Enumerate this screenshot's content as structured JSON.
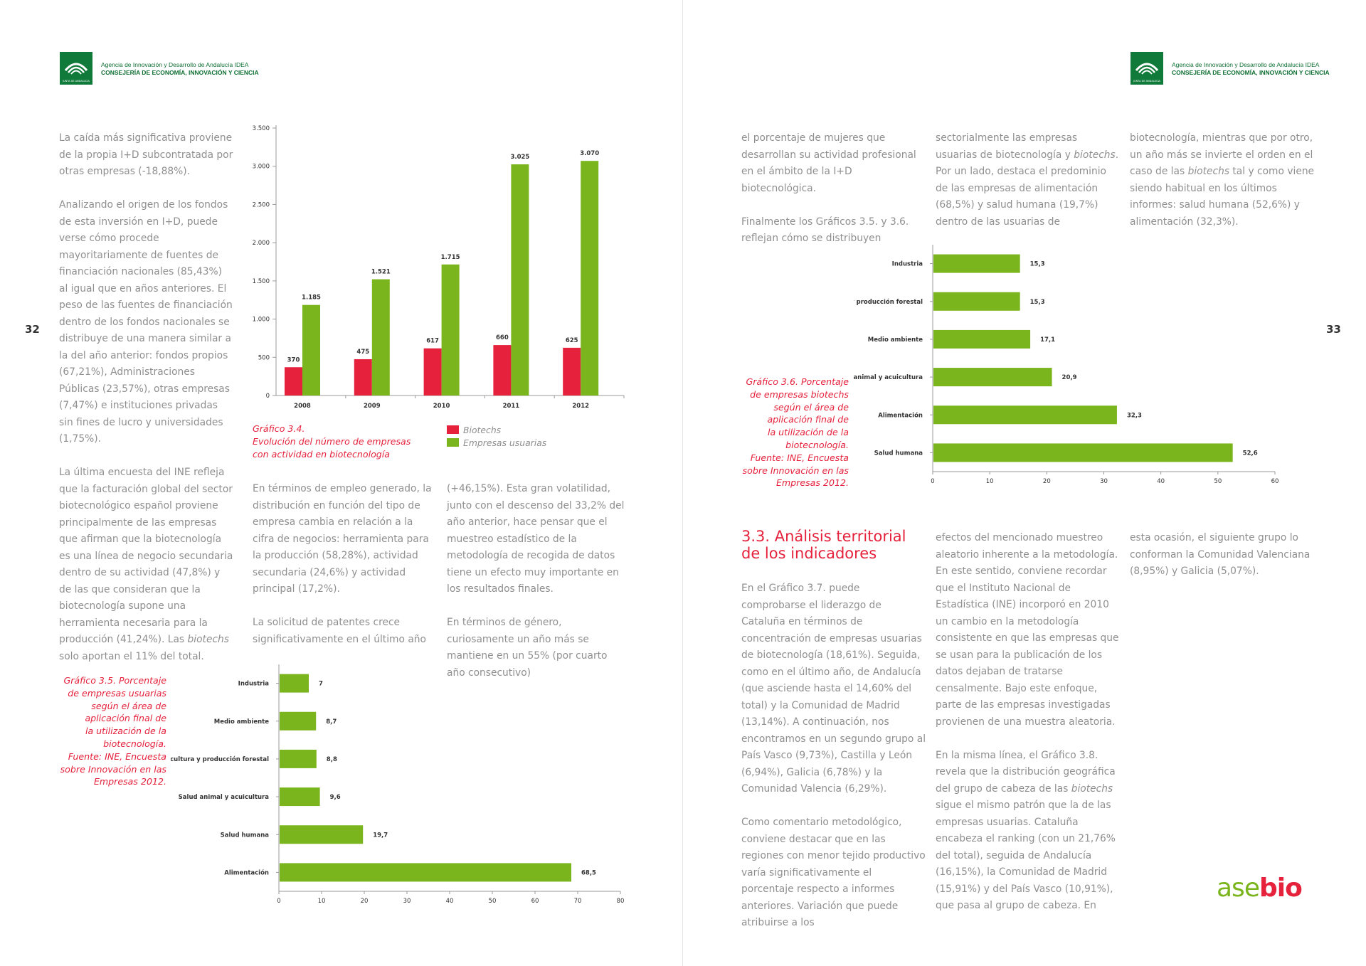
{
  "header": {
    "line1": "Agencia de Innovación y Desarrollo de Andalucía IDEA",
    "line2": "CONSEJERÍA DE ECONOMÍA, INNOVACIÓN Y CIENCIA",
    "mark_text": "JUNTA DE ANDALUCIA"
  },
  "left_page": {
    "number": "32",
    "col1": {
      "p1": "La caída más significativa proviene de la propia I+D subcontratada por otras empresas (-18,88%).",
      "p2": "Analizando el origen de los fondos de esta inversión en I+D, puede verse cómo procede mayoritariamente de fuentes de financiación nacionales (85,43%) al igual que en años anteriores. El peso de las fuentes de financiación dentro de los fondos nacionales se distribuye de una manera similar a la del año anterior: fondos propios (67,21%), Administraciones Públicas (23,57%), otras empresas (7,47%) e instituciones privadas sin fines de lucro y universidades (1,75%).",
      "p3_start": "La última encuesta del INE refleja que la facturación global del sector biotecnológico español proviene principalmente de las empresas que afirman que la biotecnología es una línea de negocio secundaria dentro de su actividad (47,8%) y de las que consideran que la biotecnología supone una herramienta necesaria para la producción (41,24%). Las ",
      "p3_em": "biotechs",
      "p3_end": " solo aportan el 11% del total."
    },
    "col2": {
      "p1": "En términos de empleo generado, la distribución en función del tipo de empresa cambia en relación a la cifra de negocios: herramienta para la producción (58,28%), actividad secundaria (24,6%) y actividad principal (17,2%).",
      "p2": "La solicitud de patentes crece significativamente en el último año"
    },
    "col3": {
      "p1": "(+46,15%). Esta gran volatilidad, junto con el descenso del 33,2% del año anterior, hace pensar que el muestreo estadístico de la metodología de recogida de datos tiene un efecto muy importante en los resultados finales.",
      "p2": "En términos de género, curiosamente un año más se mantiene en un 55% (por cuarto año consecutivo)"
    },
    "chart34_caption": [
      "Gráfico 3.4.",
      "Evolución del número de empresas",
      "con actividad en biotecnología"
    ],
    "chart35_caption": [
      "Gráfico 3.5. Porcentaje",
      "de empresas usuarias",
      "según el área de",
      "aplicación final de",
      "la utilización de la",
      "biotecnología.",
      "Fuente: INE, Encuesta",
      "sobre Innovación en las",
      "Empresas 2012."
    ]
  },
  "right_page": {
    "number": "33",
    "col1": {
      "p1": "el porcentaje de mujeres que desarrollan su actividad profesional en el ámbito de la I+D biotecnológica.",
      "p2": "Finalmente los Gráficos 3.5. y 3.6. reflejan cómo se distribuyen"
    },
    "col2": {
      "p1_a": "sectorialmente las empresas usuarias de biotecnología y ",
      "p1_em": "biotechs",
      "p1_b": ". Por un lado, destaca el predominio de las empresas de alimentación (68,5%) y salud humana (19,7%) dentro de las usuarias de"
    },
    "col3": {
      "p1_a": "biotecnología, mientras que por otro, un año más se invierte el orden en el caso de las ",
      "p1_em": "biotechs",
      "p1_b": " tal y como viene siendo habitual en los últimos informes: salud humana (52,6%) y alimentación (32,3%)."
    },
    "chart36_caption": [
      "Gráfico 3.6. Porcentaje",
      "de empresas biotechs",
      "según el área de",
      "aplicación final de",
      "la utilización de la",
      "biotecnología.",
      "Fuente: INE, Encuesta",
      "sobre Innovación en las",
      "Empresas 2012."
    ],
    "section_title_l1": "3.3. Análisis territorial",
    "section_title_l2": "de los indicadores",
    "s_col1": {
      "p1": "En el Gráfico 3.7. puede comprobarse el liderazgo de Cataluña en términos de concentración de empresas usuarias de biotecnología (18,61%). Seguida, como en el último año, de Andalucía (que asciende hasta el 14,60% del total) y la Comunidad de Madrid (13,14%). A continuación, nos encontramos en un segundo grupo al País Vasco (9,73%), Castilla y León (6,94%), Galicia (6,78%) y la Comunidad Valencia (6,29%).",
      "p2": "Como comentario metodológico, conviene destacar que en las regiones con menor tejido productivo varía significativamente el porcentaje respecto a informes anteriores. Variación que puede atribuirse a los"
    },
    "s_col2": {
      "p1": "efectos del mencionado muestreo aleatorio inherente a la metodología. En este sentido, conviene recordar que el Instituto Nacional de Estadística (INE) incorporó en 2010 un cambio en la metodología consistente en que las empresas que se usan para la publicación de los datos dejaban de tratarse censalmente. Bajo este enfoque, parte de las empresas investigadas provienen de una muestra aleatoria.",
      "p2_a": "En la misma línea, el Gráfico 3.8. revela que la distribución geográfica del grupo de cabeza de las ",
      "p2_em": "biotechs",
      "p2_b": " sigue el mismo patrón que la de las empresas usuarias. Cataluña encabeza el ranking (con un 21,76% del total), seguida de Andalucía (16,15%), la Comunidad de Madrid (15,91%) y del País Vasco (10,91%), que pasa al grupo de cabeza. En"
    },
    "s_col3": {
      "p1": "esta ocasión, el siguiente grupo lo conforman la Comunidad Valenciana (8,95%) y Galicia (5,07%)."
    },
    "brand_a": "ase",
    "brand_b": "bio"
  },
  "colors": {
    "red": "#e5213c",
    "green": "#7ab51d",
    "junta_green": "#0f7a39"
  },
  "chart_data": [
    {
      "id": "grafico-3-4",
      "type": "bar",
      "categories": [
        "2008",
        "2009",
        "2010",
        "2011",
        "2012"
      ],
      "series": [
        {
          "name": "Biotechs",
          "color": "#e5213c",
          "values": [
            370,
            475,
            617,
            660,
            625
          ],
          "labels": [
            "370",
            "475",
            "617",
            "660",
            "625"
          ]
        },
        {
          "name": "Empresas usuarias",
          "color": "#7ab51d",
          "values": [
            1185,
            1521,
            1715,
            3025,
            3070
          ],
          "labels": [
            "1.185",
            "1.521",
            "1.715",
            "3.025",
            "3.070"
          ]
        }
      ],
      "ylim": [
        0,
        3500
      ],
      "yticks": [
        0,
        500,
        1000,
        1500,
        2000,
        2500,
        3000,
        3500
      ],
      "ytick_labels": [
        "0",
        "500",
        "1.000",
        "1.500",
        "2.000",
        "2.500",
        "3.000",
        "3.500"
      ],
      "legend": "bottom"
    },
    {
      "id": "grafico-3-5",
      "type": "bar",
      "orientation": "horizontal",
      "categories": [
        "Industria",
        "Medio ambiente",
        "Agricultura y producción forestal",
        "Salud animal y acuicultura",
        "Salud humana",
        "Alimentación"
      ],
      "values": [
        7,
        8.7,
        8.8,
        9.6,
        19.7,
        68.5
      ],
      "labels": [
        "7",
        "8,7",
        "8,8",
        "9,6",
        "19,7",
        "68,5"
      ],
      "xlim": [
        0,
        80
      ],
      "xticks": [
        0,
        10,
        20,
        30,
        40,
        50,
        60,
        70,
        80
      ]
    },
    {
      "id": "grafico-3-6",
      "type": "bar",
      "orientation": "horizontal",
      "categories": [
        "Industria",
        "Agricultura y producción forestal",
        "Medio ambiente",
        "Salud animal y acuicultura",
        "Alimentación",
        "Salud humana"
      ],
      "values": [
        15.3,
        15.3,
        17.1,
        20.9,
        32.3,
        52.6
      ],
      "labels": [
        "15,3",
        "15,3",
        "17,1",
        "20,9",
        "32,3",
        "52,6"
      ],
      "xlim": [
        0,
        60
      ],
      "xticks": [
        0,
        10,
        20,
        30,
        40,
        50,
        60
      ]
    }
  ]
}
